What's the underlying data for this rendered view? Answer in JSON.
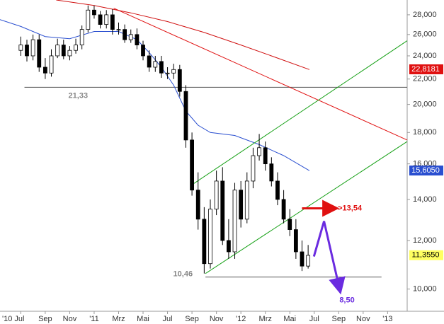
{
  "chart_data": {
    "type": "candlestick",
    "log_scale": true,
    "xlim": [
      -1.7,
      31.6
    ],
    "ylim": [
      9.2,
      29.6
    ],
    "xticks": [
      {
        "value": 0,
        "label": "'10 Jul"
      },
      {
        "value": 2,
        "label": "Sep"
      },
      {
        "value": 4,
        "label": "Nov"
      },
      {
        "value": 6,
        "label": "'11"
      },
      {
        "value": 8,
        "label": "Mrz"
      },
      {
        "value": 10,
        "label": "Mai"
      },
      {
        "value": 12,
        "label": "Jul"
      },
      {
        "value": 14,
        "label": "Sep"
      },
      {
        "value": 16,
        "label": "Nov"
      },
      {
        "value": 18,
        "label": "'12"
      },
      {
        "value": 20,
        "label": "Mrz"
      },
      {
        "value": 22,
        "label": "Mai"
      },
      {
        "value": 24,
        "label": "Jul"
      },
      {
        "value": 26,
        "label": "Sep"
      },
      {
        "value": 28,
        "label": "Nov"
      },
      {
        "value": 30,
        "label": "'13"
      }
    ],
    "yticks": [
      {
        "value": 10,
        "label": "10,000"
      },
      {
        "value": 12,
        "label": "12,000"
      },
      {
        "value": 14,
        "label": "14,000"
      },
      {
        "value": 16,
        "label": "16,000"
      },
      {
        "value": 18,
        "label": "18,000"
      },
      {
        "value": 20,
        "label": "20,000"
      },
      {
        "value": 22,
        "label": "22,000"
      },
      {
        "value": 24,
        "label": "24,000"
      },
      {
        "value": 26,
        "label": "26,000"
      },
      {
        "value": 28,
        "label": "28,000"
      }
    ],
    "candles": {
      "x": [
        0,
        0.5,
        1,
        1.5,
        2,
        2.5,
        3,
        3.5,
        4,
        4.5,
        5,
        5.5,
        6,
        6.5,
        7,
        7.5,
        8,
        8.5,
        9,
        9.5,
        10,
        10.5,
        11,
        11.5,
        12,
        12.5,
        13,
        13.5,
        14,
        14.5,
        15,
        15.5,
        16,
        16.5,
        17,
        17.5,
        18,
        18.5,
        19,
        19.5,
        20,
        20.5,
        21,
        21.5,
        22,
        22.5,
        23,
        23.5
      ],
      "open": [
        24.5,
        25,
        24,
        25.5,
        23,
        22.5,
        24,
        25,
        24,
        24.5,
        25,
        26.5,
        28.5,
        28,
        27,
        28,
        26.5,
        26.5,
        25.5,
        26,
        25,
        24,
        23,
        23.5,
        22.5,
        22.5,
        22.8,
        21,
        17.5,
        14.5,
        13,
        11,
        13.5,
        15,
        12,
        11.5,
        14.5,
        13,
        15,
        16.5,
        17,
        16,
        15,
        14,
        13,
        12.5,
        11.5,
        10.9
      ],
      "high": [
        25.8,
        25.5,
        26,
        26,
        23.8,
        24.6,
        25.6,
        25.5,
        24.9,
        25.6,
        26.9,
        29,
        29,
        28.4,
        28.5,
        28.6,
        27.2,
        27,
        26.5,
        26.6,
        25.4,
        24.5,
        24,
        24,
        23,
        23.3,
        23.2,
        21.5,
        18,
        15.5,
        13.6,
        14,
        15.6,
        15.8,
        13,
        14.9,
        15,
        15.5,
        17,
        17.9,
        17.4,
        16.4,
        15.5,
        14.5,
        13.5,
        13,
        12,
        11.8
      ],
      "low": [
        24,
        23.5,
        23.6,
        22.6,
        22,
        22.2,
        23.8,
        23.7,
        23.6,
        24.2,
        24.6,
        26.2,
        27.6,
        26.6,
        26.6,
        26,
        26,
        25.2,
        25.2,
        24.6,
        23.6,
        22.6,
        22.6,
        22.1,
        22,
        22,
        20.6,
        17,
        14.2,
        12.5,
        10.6,
        10.8,
        13.2,
        11.8,
        11.2,
        11.2,
        12.6,
        12.8,
        14.6,
        16.2,
        15.6,
        14.7,
        13.7,
        12.8,
        12.2,
        11.2,
        10.7,
        10.8
      ],
      "close": [
        25,
        24,
        25.5,
        23,
        22.5,
        24,
        25,
        24,
        24.5,
        25,
        26.5,
        28.5,
        28,
        27,
        28,
        26.5,
        26.5,
        25.5,
        26,
        25,
        24,
        23,
        23.5,
        22.5,
        22.5,
        22.8,
        21,
        17.5,
        14.5,
        13,
        11,
        13.5,
        15,
        12,
        11.5,
        14.5,
        13,
        15,
        16.5,
        17,
        16,
        15,
        14,
        13,
        12.5,
        11.5,
        10.9,
        11.35
      ]
    },
    "lines": [
      {
        "color": "#2a4fd0",
        "x": [
          -1.7,
          0,
          2,
          4,
          6,
          8,
          9.5,
          10.5,
          11.5,
          12.5,
          13.5,
          14.5,
          15.5,
          17.5,
          19.5,
          21.5,
          23.6
        ],
        "values": [
          27.5,
          26.8,
          25.8,
          25.6,
          26.3,
          26.3,
          25.5,
          24.3,
          23,
          21.5,
          19.5,
          18.5,
          18,
          17.8,
          17.2,
          16.5,
          15.6
        ]
      },
      {
        "color": "#d01010",
        "x": [
          2.9,
          6,
          9,
          12,
          15,
          18,
          21,
          23.6
        ],
        "values": [
          29.6,
          29,
          28.2,
          27.3,
          26.2,
          25,
          23.8,
          22.8
        ]
      },
      {
        "color": "#e01010",
        "x": [
          7.6,
          31.6
        ],
        "values": [
          28.7,
          17.5
        ]
      },
      {
        "color": "#16a016",
        "x": [
          13.9,
          31.6
        ],
        "values": [
          14.75,
          25.4
        ]
      },
      {
        "color": "#16a016",
        "x": [
          15.1,
          31.6
        ],
        "values": [
          10.6,
          17.4
        ]
      }
    ],
    "levels": [
      {
        "value": 21.33,
        "label": "21,33",
        "x": [
          0.3,
          31.6
        ]
      },
      {
        "value": 10.46,
        "label": "10,46",
        "x": [
          15.1,
          29.5
        ]
      }
    ],
    "resistance": {
      "value": 13.54,
      "label": ">13,54",
      "x": [
        23.0,
        25.7
      ],
      "color": "#e01010"
    },
    "forecast": {
      "color": "#6a2be0",
      "x": [
        23.97,
        24.8,
        26.1
      ],
      "values": [
        11.3,
        12.9,
        9.95
      ],
      "label": "8,50"
    },
    "price_tags": [
      {
        "value": 22.8181,
        "label": "22,8181",
        "color": "#e01010",
        "text_color": "#ffffff"
      },
      {
        "value": 15.605,
        "label": "15,6050",
        "color": "#2a4fd0",
        "text_color": "#ffffff"
      },
      {
        "value": 11.355,
        "label": "11,3550",
        "color": "#ffff60",
        "text_color": "#000000"
      }
    ]
  }
}
